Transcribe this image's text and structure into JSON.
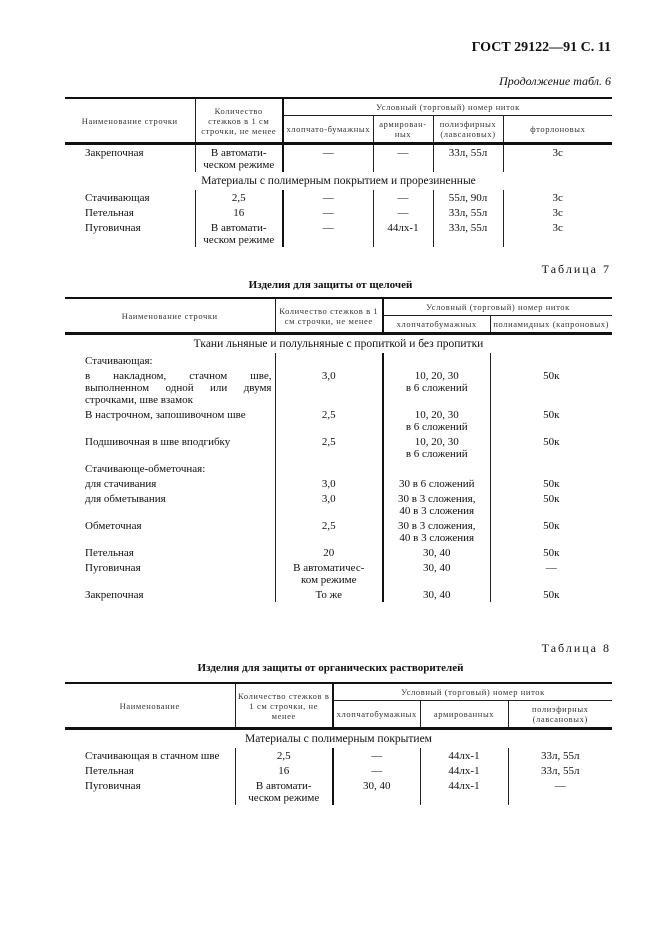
{
  "header": "ГОСТ 29122—91 С. 11",
  "continuation": "Продолжение табл. 6",
  "table6": {
    "head": {
      "name": "Наименование строчки",
      "count": "Количество стежков в 1 см строчки, не менее",
      "group": "Условный (торговый) номер ниток",
      "cols": [
        "хлопчато-бумажных",
        "армирован-ных",
        "полиэфирных (лавсановых)",
        "фторлоновых"
      ]
    },
    "rows": [
      {
        "cells": [
          "Закрепочная",
          "В автомати-\nческом режиме",
          "—",
          "—",
          "33л, 55л",
          "3с"
        ]
      },
      {
        "section": "Материалы с полимерным покрытием и прорезиненные"
      },
      {
        "cells": [
          "Стачивающая",
          "2,5",
          "—",
          "—",
          "55л, 90л",
          "3с"
        ]
      },
      {
        "cells": [
          "Петельная",
          "16",
          "—",
          "—",
          "33л, 55л",
          "3с"
        ]
      },
      {
        "cells": [
          "Пуговичная",
          "В автомати-\nческом режиме",
          "—",
          "44лх-1",
          "33л, 55л",
          "3с"
        ]
      }
    ]
  },
  "table7": {
    "label": "Таблица 7",
    "title": "Изделия для защиты от щелочей",
    "head": {
      "name": "Наименование строчки",
      "count": "Количество стежков в 1 см строчки, не менее",
      "group": "Условный (торговый) номер ниток",
      "cols": [
        "хлопчатобумажных",
        "полиамидных (капроновых)"
      ]
    },
    "rows": [
      {
        "section": "Ткани льняные и полульняные с пропиткой и без пропитки"
      },
      {
        "cells": [
          "Стачивающая:",
          "",
          "",
          ""
        ]
      },
      {
        "cells": [
          "в накладном, стачном шве, выполненном одной или двумя строчками, шве взамок",
          "3,0",
          "10, 20, 30\nв 6 сложений",
          "50к"
        ]
      },
      {
        "cells": [
          "В настрочном, запошивочном шве",
          "2,5",
          "10, 20, 30\nв 6 сложений",
          "50к"
        ]
      },
      {
        "cells": [
          "Подшивочная в шве вподгибку",
          "2,5",
          "10, 20, 30\nв 6 сложений",
          "50к"
        ]
      },
      {
        "cells": [
          "Стачивающе-обметочная:",
          "",
          "",
          ""
        ]
      },
      {
        "cells": [
          "для стачивания",
          "3,0",
          "30 в 6 сложений",
          "50к"
        ]
      },
      {
        "cells": [
          "для обметывания",
          "3,0",
          "30 в 3 сложения,\n40 в 3 сложения",
          "50к"
        ]
      },
      {
        "cells": [
          "Обметочная",
          "2,5",
          "30 в 3 сложения,\n40 в 3 сложения",
          "50к"
        ]
      },
      {
        "cells": [
          "Петельная",
          "20",
          "30, 40",
          "50к"
        ]
      },
      {
        "cells": [
          "Пуговичная",
          "В автоматичес-\nком режиме",
          "30, 40",
          "—"
        ]
      },
      {
        "cells": [
          "Закрепочная",
          "То же",
          "30, 40",
          "50к"
        ]
      }
    ]
  },
  "table8": {
    "label": "Таблица 8",
    "title": "Изделия для защиты от органических растворителей",
    "head": {
      "name": "Наименование",
      "count": "Количество стежков в 1 см строчки, не менее",
      "group": "Условный (торговый) номер ниток",
      "cols": [
        "хлопчатобумажных",
        "армированных",
        "полиэфирных (лавсановых)"
      ]
    },
    "rows": [
      {
        "section": "Материалы с полимерным покрытием"
      },
      {
        "cells": [
          "Стачивающая в стачном шве",
          "2,5",
          "—",
          "44лх-1",
          "33л, 55л"
        ]
      },
      {
        "cells": [
          "Петельная",
          "16",
          "—",
          "44лх-1",
          "33л, 55л"
        ]
      },
      {
        "cells": [
          "Пуговичная",
          "В автомати-\nческом режиме",
          "30, 40",
          "44лх-1",
          "—"
        ]
      }
    ]
  }
}
